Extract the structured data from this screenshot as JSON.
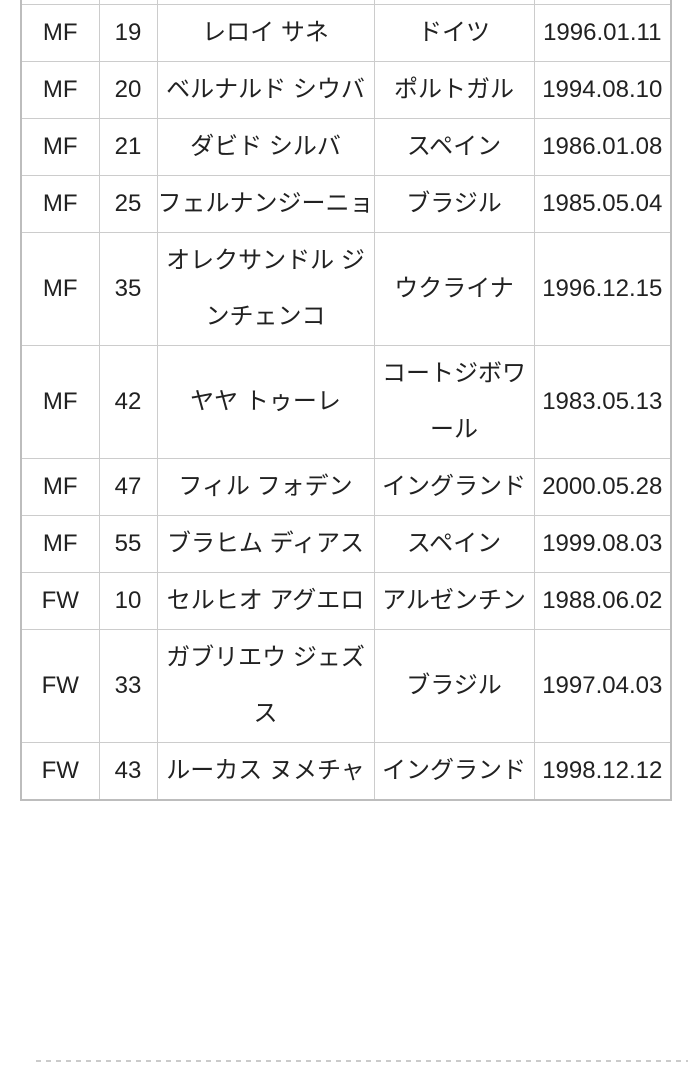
{
  "table": {
    "field_order": [
      "position",
      "number",
      "name",
      "nationality",
      "birthdate"
    ],
    "rows": [
      {
        "position": "MF",
        "number": "19",
        "name": "レロイ サネ",
        "nationality": "ドイツ",
        "birthdate": "1996.01.11"
      },
      {
        "position": "MF",
        "number": "20",
        "name": "ベルナルド シウバ",
        "nationality": "ポルトガル",
        "birthdate": "1994.08.10"
      },
      {
        "position": "MF",
        "number": "21",
        "name": "ダビド シルバ",
        "nationality": "スペイン",
        "birthdate": "1986.01.08"
      },
      {
        "position": "MF",
        "number": "25",
        "name": "フェルナンジーニョ",
        "nationality": "ブラジル",
        "birthdate": "1985.05.04"
      },
      {
        "position": "MF",
        "number": "35",
        "name": "オレクサンドル ジンチェンコ",
        "nationality": "ウクライナ",
        "birthdate": "1996.12.15"
      },
      {
        "position": "MF",
        "number": "42",
        "name": "ヤヤ トゥーレ",
        "nationality": "コートジボワール",
        "birthdate": "1983.05.13"
      },
      {
        "position": "MF",
        "number": "47",
        "name": "フィル フォデン",
        "nationality": "イングランド",
        "birthdate": "2000.05.28"
      },
      {
        "position": "MF",
        "number": "55",
        "name": "ブラヒム ディアス",
        "nationality": "スペイン",
        "birthdate": "1999.08.03"
      },
      {
        "position": "FW",
        "number": "10",
        "name": "セルヒオ アグエロ",
        "nationality": "アルゼンチン",
        "birthdate": "1988.06.02"
      },
      {
        "position": "FW",
        "number": "33",
        "name": "ガブリエウ ジェズス",
        "nationality": "ブラジル",
        "birthdate": "1997.04.03"
      },
      {
        "position": "FW",
        "number": "43",
        "name": "ルーカス ヌメチャ",
        "nationality": "イングランド",
        "birthdate": "1998.12.12"
      }
    ]
  },
  "colors": {
    "text": "#212121",
    "border_inner": "#cccccc",
    "border_outer": "#bdbdbd",
    "background": "#ffffff",
    "divider": "#cbcbcb"
  }
}
